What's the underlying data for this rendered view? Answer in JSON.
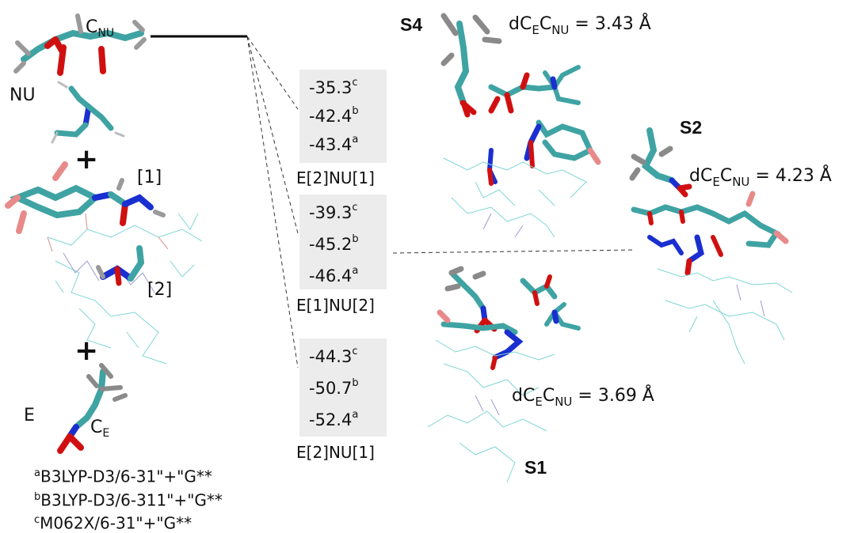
{
  "reactants": {
    "cnu_label": "C",
    "cnu_sub": "NU",
    "nu_label": "NU",
    "site1_label": "[1]",
    "site2_label": "[2]",
    "e_label": "E",
    "ce_label": "C",
    "ce_sub": "E",
    "plus": "+"
  },
  "energy_boxes": [
    {
      "values": [
        {
          "num": "-35.3",
          "sup": "c"
        },
        {
          "num": "-42.4",
          "sup": "b"
        },
        {
          "num": "-43.4",
          "sup": "a"
        }
      ],
      "caption": "E[2]NU[1]"
    },
    {
      "values": [
        {
          "num": "-39.3",
          "sup": "c"
        },
        {
          "num": "-45.2",
          "sup": "b"
        },
        {
          "num": "-46.4",
          "sup": "a"
        }
      ],
      "caption": "E[1]NU[2]"
    },
    {
      "values": [
        {
          "num": "-44.3",
          "sup": "c"
        },
        {
          "num": "-50.7",
          "sup": "b"
        },
        {
          "num": "-52.4",
          "sup": "a"
        }
      ],
      "caption": "E[2]NU[1]"
    }
  ],
  "footnotes": [
    {
      "sup": "a",
      "text": "B3LYP-D3/6-31\"+\"G**"
    },
    {
      "sup": "b",
      "text": "B3LYP-D3/6-311\"+\"G**"
    },
    {
      "sup": "c",
      "text": "M062X/6-31\"+\"G**"
    }
  ],
  "structures": {
    "s4": {
      "label": "S4",
      "dist_prefix": "d",
      "dist_c1": "C",
      "dist_c1_sub": "E",
      "dist_c2": "C",
      "dist_c2_sub": "NU",
      "dist_value": "= 3.43 Å"
    },
    "s2": {
      "label": "S2",
      "dist_prefix": "d",
      "dist_c1": "C",
      "dist_c1_sub": "E",
      "dist_c2": "C",
      "dist_c2_sub": "NU",
      "dist_value": "= 4.23 Å"
    },
    "s1": {
      "label": "S1",
      "dist_prefix": "d",
      "dist_c1": "C",
      "dist_c1_sub": "E",
      "dist_c2": "C",
      "dist_c2_sub": "NU",
      "dist_value": "= 3.69 Å"
    }
  },
  "colors": {
    "carbon": "#3fa3a3",
    "hydrogen": "#cfcfcf",
    "gray_stick": "#7a7a7a",
    "oxygen": "#d01010",
    "nitrogen": "#1a2fd0",
    "halide": "#e88a8a",
    "box": "#ececec"
  }
}
